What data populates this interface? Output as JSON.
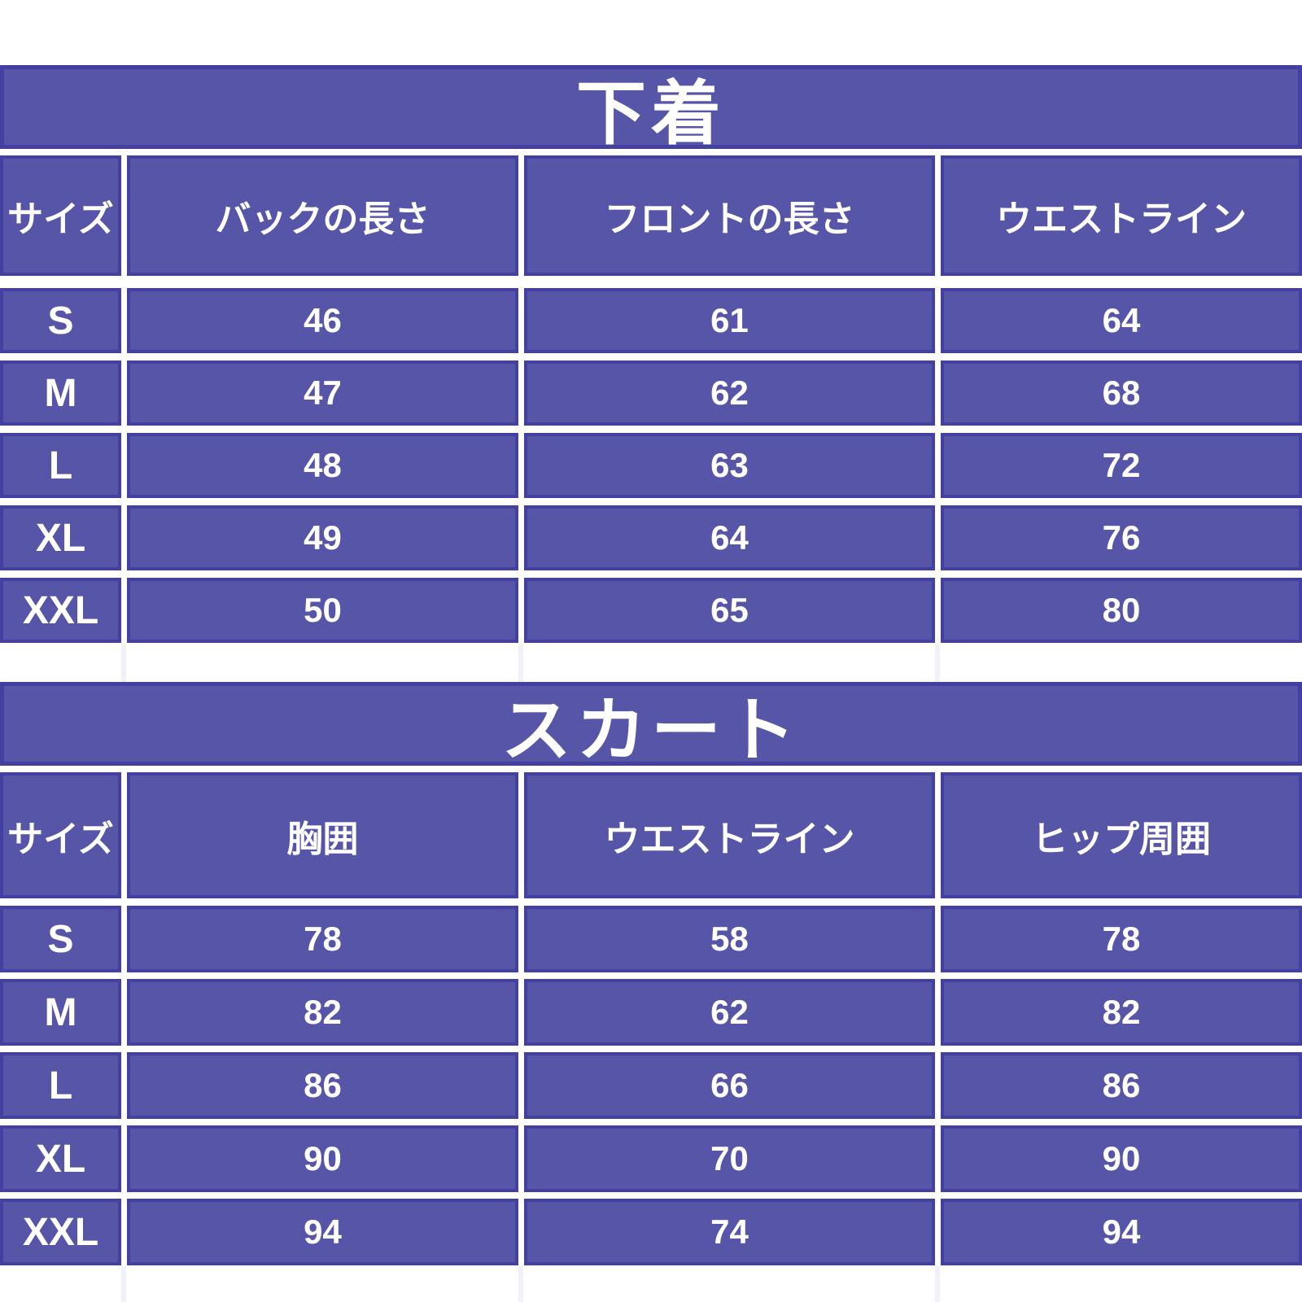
{
  "colors": {
    "cell_fill": "#5755a8",
    "cell_border": "#4440a1",
    "text": "#ffffff",
    "background": "#ffffff"
  },
  "tables": [
    {
      "title": "下着",
      "size_header": "サイズ",
      "columns": [
        "バックの長さ",
        "フロントの長さ",
        "ウエストライン"
      ],
      "rows": [
        {
          "size": "S",
          "values": [
            "46",
            "61",
            "64"
          ]
        },
        {
          "size": "M",
          "values": [
            "47",
            "62",
            "68"
          ]
        },
        {
          "size": "L",
          "values": [
            "48",
            "63",
            "72"
          ]
        },
        {
          "size": "XL",
          "values": [
            "49",
            "64",
            "76"
          ]
        },
        {
          "size": "XXL",
          "values": [
            "50",
            "65",
            "80"
          ]
        }
      ]
    },
    {
      "title": "スカート",
      "size_header": "サイズ",
      "columns": [
        "胸囲",
        "ウエストライン",
        "ヒップ周囲"
      ],
      "rows": [
        {
          "size": "S",
          "values": [
            "78",
            "58",
            "78"
          ]
        },
        {
          "size": "M",
          "values": [
            "82",
            "62",
            "82"
          ]
        },
        {
          "size": "L",
          "values": [
            "86",
            "66",
            "86"
          ]
        },
        {
          "size": "XL",
          "values": [
            "90",
            "70",
            "90"
          ]
        },
        {
          "size": "XXL",
          "values": [
            "94",
            "74",
            "94"
          ]
        }
      ]
    }
  ]
}
